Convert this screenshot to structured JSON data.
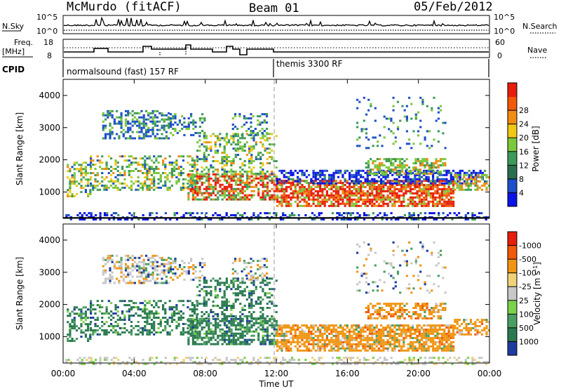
{
  "header": {
    "station": "McMurdo (fitACF)",
    "beam": "Beam 01",
    "date": "05/Feb/2012"
  },
  "top_panels": {
    "nsky_label": "N.Sky",
    "nsky_ticks": [
      "10^5",
      "10^0"
    ],
    "nsearch_label": "N.Search",
    "nsearch_ticks": [
      "10^5",
      "10^0"
    ],
    "freq_label_1": "Freq.",
    "freq_label_2": "[MHz]",
    "freq_ticks": [
      "18",
      "8"
    ],
    "nave_label": "Nave",
    "nave_ticks": [
      "60",
      "0"
    ],
    "cpid_label": "CPID",
    "cpid_segments": [
      {
        "label": "normalsound (fast) 157 RF",
        "start_hour": 0
      },
      {
        "label": "themis 3300 RF",
        "start_hour": 12
      }
    ]
  },
  "chart_data": [
    {
      "type": "heatmap",
      "title": "",
      "xlabel": "Time UT",
      "ylabel": "Slant Range [km]",
      "xlim": [
        0,
        24
      ],
      "ylim": [
        180,
        4500
      ],
      "x_ticks": [
        "00:00",
        "04:00",
        "08:00",
        "12:00",
        "16:00",
        "20:00",
        "00:00"
      ],
      "y_ticks": [
        1000,
        2000,
        3000,
        4000
      ],
      "colorbar": {
        "label": "Power [dB]",
        "ticks": [
          4,
          8,
          12,
          16,
          20,
          24,
          28
        ],
        "colors": [
          "#0a14e6",
          "#1e50c8",
          "#2a6e50",
          "#3d9a5a",
          "#7cc83c",
          "#f0c814",
          "#f08c14",
          "#f05a0a",
          "#e61e0a"
        ]
      }
    },
    {
      "type": "heatmap",
      "title": "",
      "xlabel": "Time UT",
      "ylabel": "Slant Range [km]",
      "xlim": [
        0,
        24
      ],
      "ylim": [
        180,
        4500
      ],
      "x_ticks": [
        "00:00",
        "04:00",
        "08:00",
        "12:00",
        "16:00",
        "20:00",
        "00:00"
      ],
      "y_ticks": [
        1000,
        2000,
        3000,
        4000
      ],
      "colorbar": {
        "label_main": "Velocity [m s",
        "label_sup": "-1",
        "label_end": "]",
        "ticks": [
          1000,
          500,
          100,
          25,
          -25,
          -100,
          -500,
          -1000
        ],
        "colors": [
          "#1e3ca0",
          "#2a7a50",
          "#4a9e62",
          "#7ad24a",
          "#c8c8c8",
          "#f0d278",
          "#f09614",
          "#f05a0a",
          "#e61e0a"
        ]
      }
    }
  ]
}
